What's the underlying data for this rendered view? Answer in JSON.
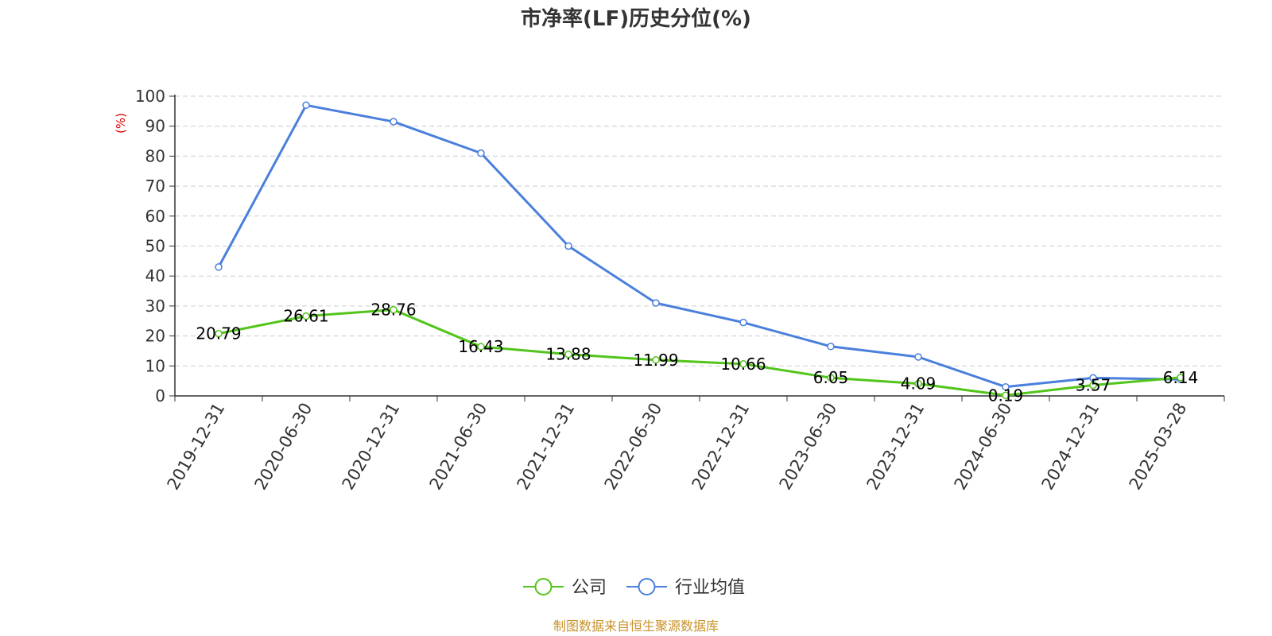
{
  "chart_data": {
    "type": "line",
    "title": "市净率(LF)历史分位(%)",
    "ylabel": "(%)",
    "xlabel": "",
    "ylim": [
      0,
      100
    ],
    "yticks": [
      0,
      10,
      20,
      30,
      40,
      50,
      60,
      70,
      80,
      90,
      100
    ],
    "grid": true,
    "legend_position": "bottom-center",
    "categories": [
      "2019-12-31",
      "2020-06-30",
      "2020-12-31",
      "2021-06-30",
      "2021-12-31",
      "2022-06-30",
      "2022-12-31",
      "2023-06-30",
      "2023-12-31",
      "2024-06-30",
      "2024-12-31",
      "2025-03-28"
    ],
    "series": [
      {
        "name": "公司",
        "color": "#52c41a",
        "values": [
          20.79,
          26.61,
          28.76,
          16.43,
          13.88,
          11.99,
          10.66,
          6.05,
          4.09,
          0.19,
          3.57,
          6.14
        ],
        "labels": [
          "20.79",
          "26.61",
          "28.76",
          "16.43",
          "13.88",
          "11.99",
          "10.66",
          "6.05",
          "4.09",
          "0.19",
          "3.57",
          "6.14"
        ],
        "show_labels": true
      },
      {
        "name": "行业均值",
        "color": "#4a7fdc",
        "values": [
          43,
          97,
          91.5,
          81,
          50,
          31,
          24.5,
          16.5,
          13,
          3,
          6,
          5.5
        ],
        "show_labels": false
      }
    ],
    "source": "制图数据来自恒生聚源数据库"
  }
}
